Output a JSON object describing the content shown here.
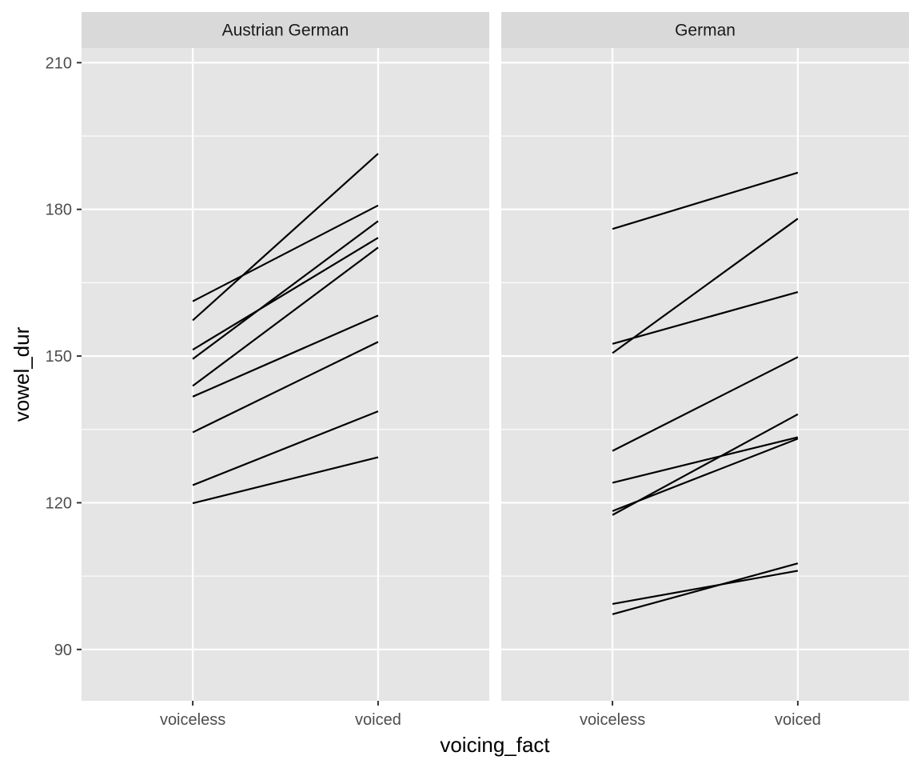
{
  "chart_data": {
    "type": "line",
    "xlabel": "voicing_fact",
    "ylabel": "vowel_dur",
    "categories": [
      "voiceless",
      "voiced"
    ],
    "yticks": [
      90,
      120,
      150,
      180,
      210
    ],
    "ylim": [
      79.5,
      213
    ],
    "grid": true,
    "colors": {
      "panel_bg": "#e5e5e5",
      "strip_bg": "#d9d9d9",
      "grid": "#ffffff",
      "line": "#000000"
    },
    "panels": [
      {
        "title": "Austrian German",
        "segments": [
          {
            "voiceless": 161.2,
            "voiced": 180.8
          },
          {
            "voiceless": 157.3,
            "voiced": 191.4
          },
          {
            "voiceless": 151.3,
            "voiced": 174.2
          },
          {
            "voiceless": 149.4,
            "voiced": 177.6
          },
          {
            "voiceless": 143.9,
            "voiced": 172.2
          },
          {
            "voiceless": 141.7,
            "voiced": 158.3
          },
          {
            "voiceless": 134.4,
            "voiced": 152.9
          },
          {
            "voiceless": 123.6,
            "voiced": 138.7
          },
          {
            "voiceless": 119.9,
            "voiced": 129.3
          }
        ]
      },
      {
        "title": "German",
        "segments": [
          {
            "voiceless": 176.0,
            "voiced": 187.5
          },
          {
            "voiceless": 152.5,
            "voiced": 163.1
          },
          {
            "voiceless": 150.6,
            "voiced": 178.1
          },
          {
            "voiceless": 130.6,
            "voiced": 149.8
          },
          {
            "voiceless": 124.1,
            "voiced": 133.4
          },
          {
            "voiceless": 118.3,
            "voiced": 133.1
          },
          {
            "voiceless": 117.5,
            "voiced": 138.1
          },
          {
            "voiceless": 99.3,
            "voiced": 106.1
          },
          {
            "voiceless": 97.2,
            "voiced": 107.6
          }
        ]
      }
    ]
  }
}
